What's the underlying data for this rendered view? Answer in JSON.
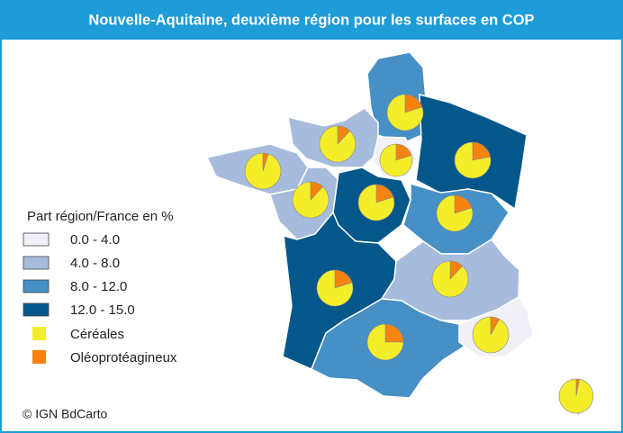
{
  "title": "Nouvelle-Aquitaine, deuxième région pour les surfaces en COP",
  "legend": {
    "title": "Part région/France en %",
    "classes": [
      {
        "label": "0.0 - 4.0",
        "color": "#f1eff7"
      },
      {
        "label": "4.0 - 8.0",
        "color": "#a7bcdc"
      },
      {
        "label": "8.0 - 12.0",
        "color": "#4690c6"
      },
      {
        "label": "12.0 - 15.0",
        "color": "#04578a"
      }
    ],
    "pie_series": [
      {
        "name": "Céréales",
        "color": "#f4ee2a"
      },
      {
        "name": "Oléoprotéagineux",
        "color": "#f7830f"
      }
    ]
  },
  "regions": [
    {
      "class": 2,
      "shares": [
        80,
        20
      ]
    },
    {
      "class": 1,
      "shares": [
        88,
        12
      ]
    },
    {
      "class": 0,
      "shares": [
        80,
        20
      ]
    },
    {
      "class": 3,
      "shares": [
        78,
        22
      ]
    },
    {
      "class": 1,
      "shares": [
        95,
        5
      ]
    },
    {
      "class": 1,
      "shares": [
        88,
        12
      ]
    },
    {
      "class": 3,
      "shares": [
        80,
        20
      ]
    },
    {
      "class": 2,
      "shares": [
        80,
        20
      ]
    },
    {
      "class": 3,
      "shares": [
        80,
        20
      ]
    },
    {
      "class": 1,
      "shares": [
        88,
        12
      ]
    },
    {
      "class": 2,
      "shares": [
        75,
        25
      ]
    },
    {
      "class": 0,
      "shares": [
        92,
        8
      ]
    },
    {
      "class": 1,
      "shares": [
        97,
        3
      ]
    }
  ],
  "credit": "© IGN BdCarto"
}
